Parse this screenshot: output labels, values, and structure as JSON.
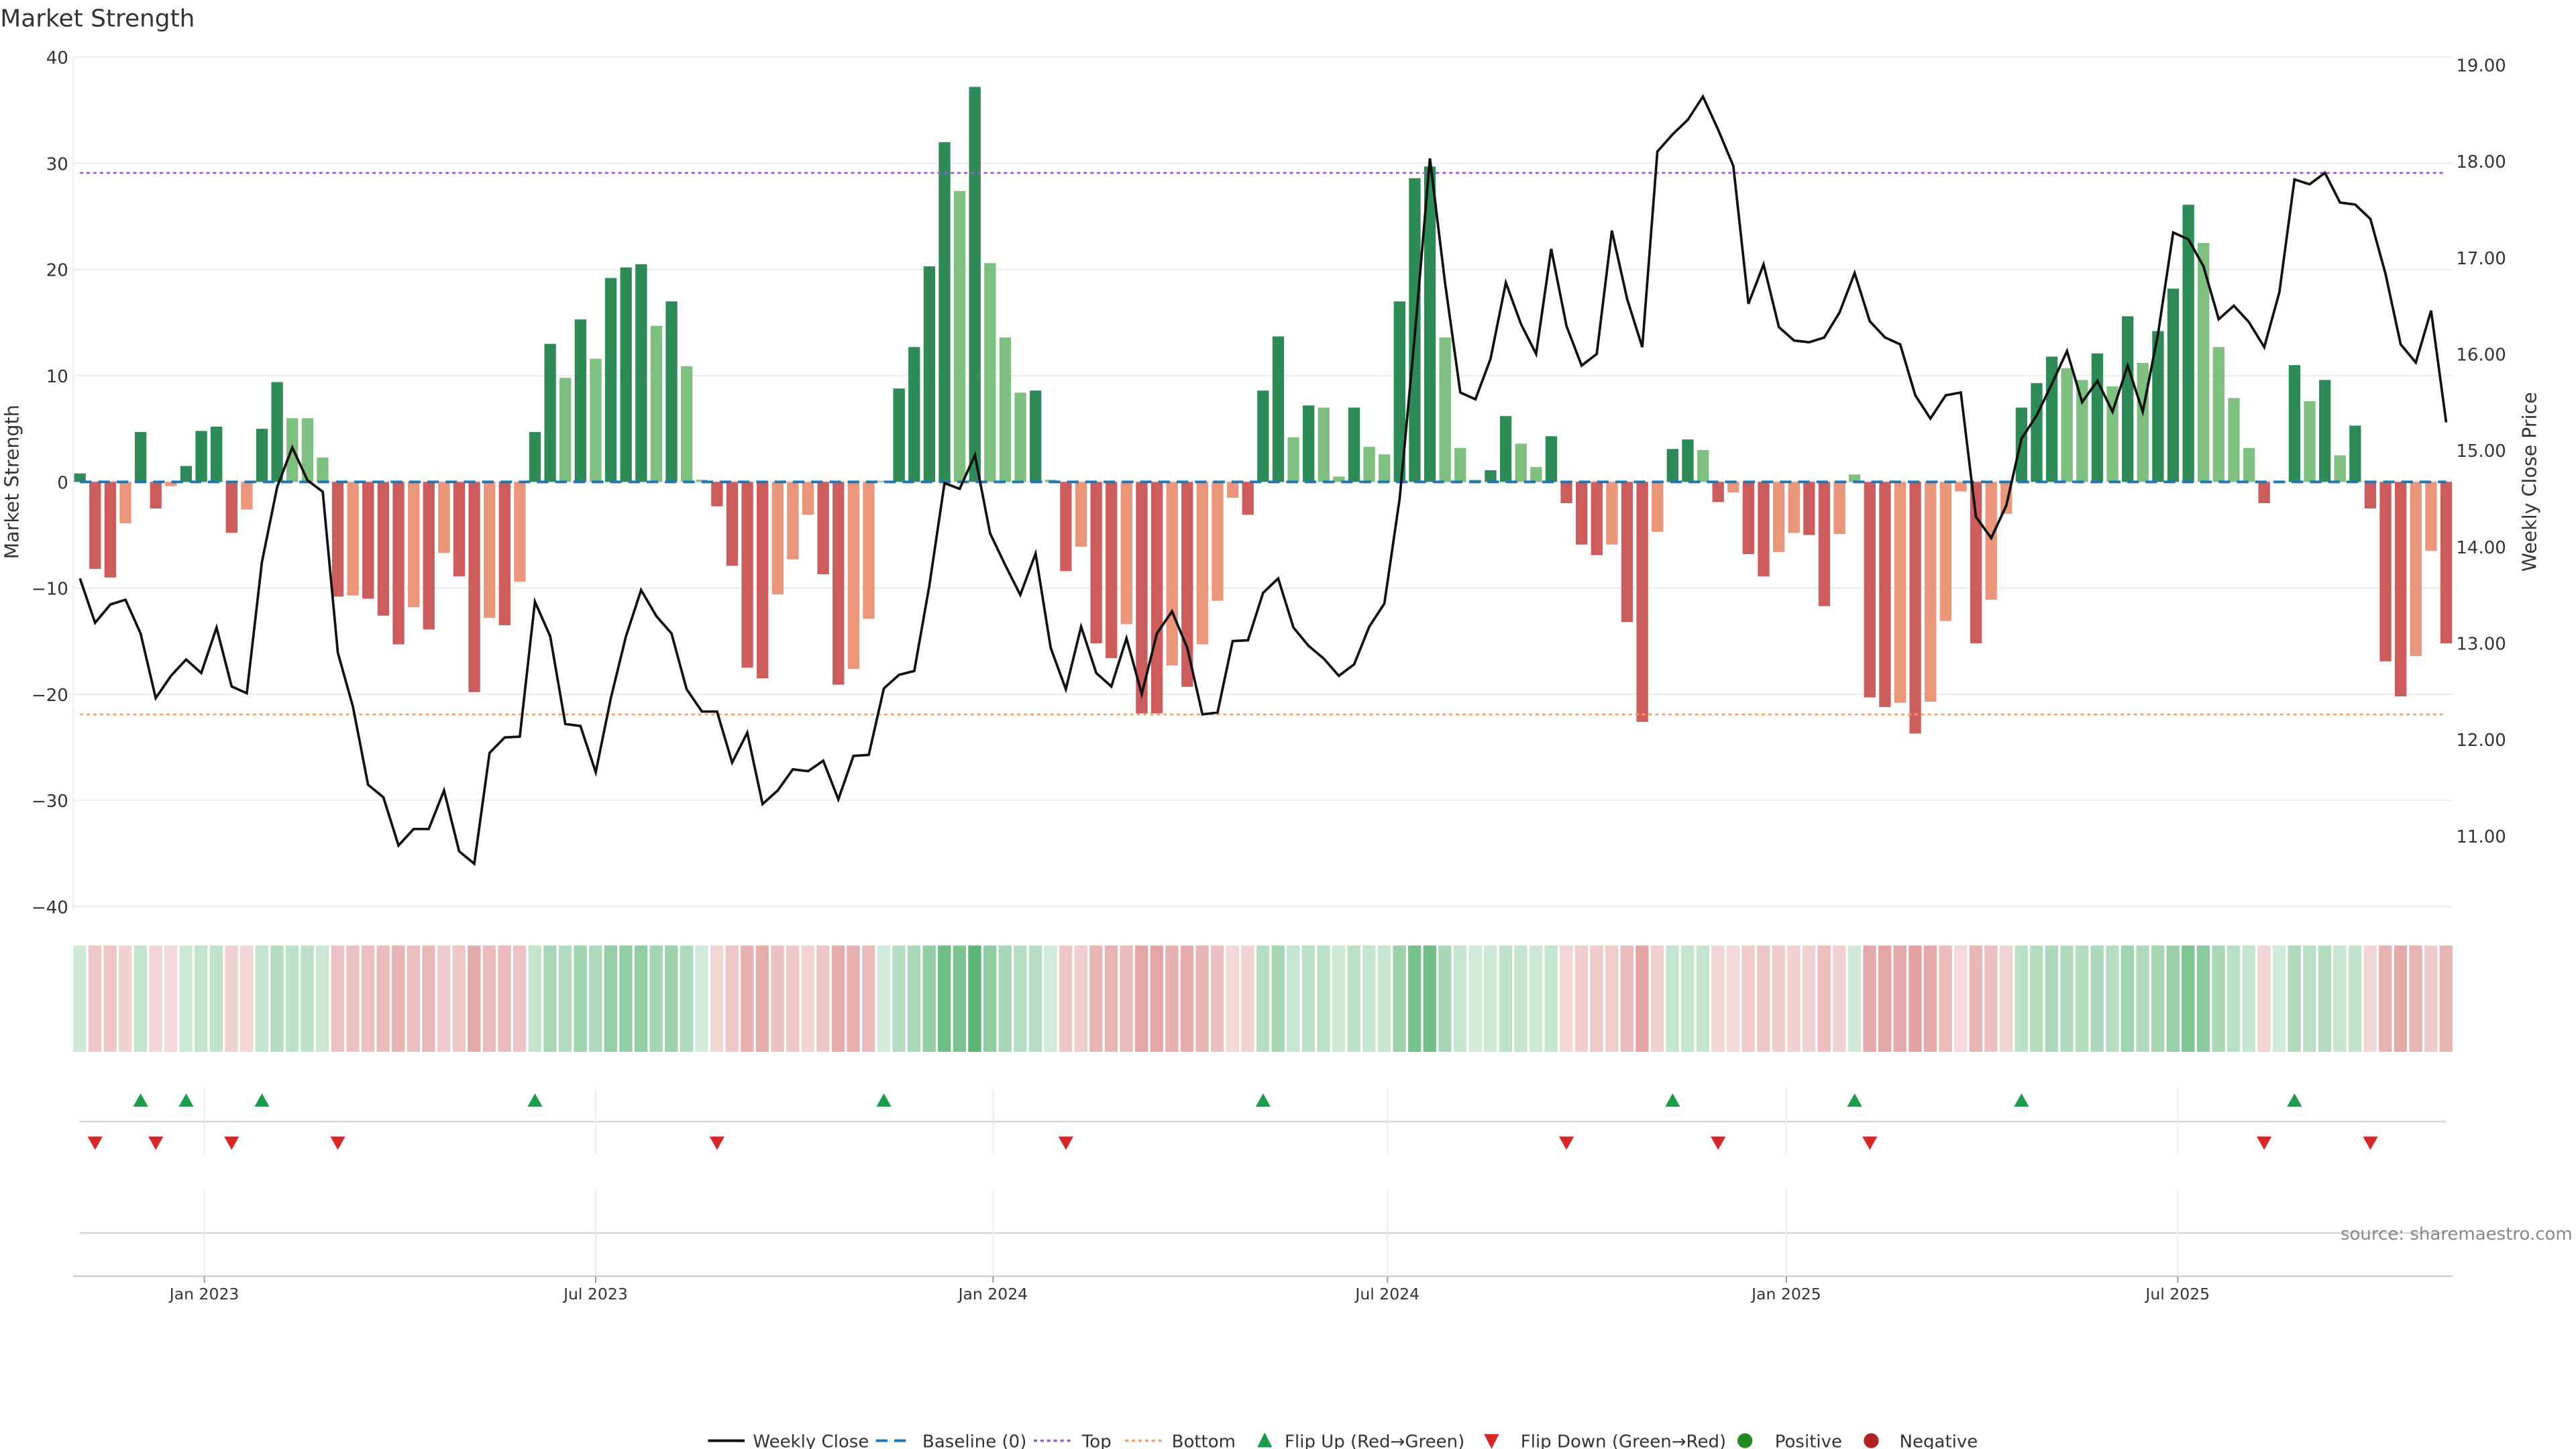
{
  "chart_data": {
    "type": "bar+line",
    "title": "Market Strength",
    "ylabel": "Market Strength",
    "y2label": "Weekly Close Price",
    "ylim": [
      -40,
      40
    ],
    "yticks": [
      40,
      30,
      20,
      10,
      0,
      -10,
      -20,
      -30,
      -40
    ],
    "ytick_labels": [
      "40",
      "30",
      "20",
      "10",
      "0",
      "−10",
      "−20",
      "−30",
      "−40"
    ],
    "y2lim": [
      10.15,
      19.1
    ],
    "y2ticks": [
      19,
      18,
      17,
      16,
      15,
      14,
      13,
      12,
      11
    ],
    "y2tick_labels": [
      "19.00",
      "18.00",
      "17.00",
      "16.00",
      "15.00",
      "14.00",
      "13.00",
      "12.00",
      "11.00"
    ],
    "top_line": 29.1,
    "bottom_line": -21.9,
    "baseline": 0,
    "x_ticks": [
      {
        "week_index": 8.2,
        "label": "Jan 2023"
      },
      {
        "week_index": 34.0,
        "label": "Jul 2023"
      },
      {
        "week_index": 60.2,
        "label": "Jan 2024"
      },
      {
        "week_index": 86.2,
        "label": "Jul 2024"
      },
      {
        "week_index": 112.5,
        "label": "Jan 2025"
      },
      {
        "week_index": 138.3,
        "label": "Jul 2025"
      }
    ],
    "strength": [
      0.8,
      -8.2,
      -9.0,
      -3.9,
      4.7,
      -2.5,
      -0.4,
      1.5,
      4.8,
      5.2,
      -4.8,
      -2.6,
      5.0,
      9.4,
      6.0,
      6.0,
      2.3,
      -10.8,
      -10.7,
      -11.0,
      -12.6,
      -15.3,
      -11.8,
      -13.9,
      -6.7,
      -8.9,
      -19.8,
      -12.8,
      -13.5,
      -9.4,
      4.7,
      13.0,
      9.8,
      15.3,
      11.6,
      19.2,
      20.2,
      20.5,
      14.7,
      17.0,
      10.9,
      0.2,
      -2.3,
      -7.9,
      -17.5,
      -18.5,
      -10.6,
      -7.3,
      -3.1,
      -8.7,
      -19.1,
      -17.6,
      -12.9,
      0.1,
      8.8,
      12.7,
      20.3,
      32.0,
      27.4,
      37.2,
      20.6,
      13.6,
      8.4,
      8.6,
      0.2,
      -8.4,
      -6.1,
      -15.2,
      -16.6,
      -13.4,
      -21.8,
      -21.8,
      -17.3,
      -19.3,
      -15.3,
      -11.2,
      -1.5,
      -3.1,
      8.6,
      13.7,
      4.2,
      7.2,
      7.0,
      0.5,
      7.0,
      3.3,
      2.6,
      17.0,
      28.6,
      29.7,
      13.6,
      3.2,
      0.2,
      1.1,
      6.2,
      3.6,
      1.4,
      4.3,
      -2.0,
      -5.9,
      -6.9,
      -5.9,
      -13.2,
      -22.6,
      -4.7,
      3.1,
      4.0,
      3.0,
      -1.9,
      -1.0,
      -6.8,
      -8.9,
      -6.6,
      -4.8,
      -5.0,
      -11.7,
      -4.9,
      0.7,
      -20.3,
      -21.2,
      -20.8,
      -23.7,
      -20.7,
      -13.1,
      -0.9,
      -15.2,
      -11.1,
      -3.0,
      7.0,
      9.3,
      11.8,
      10.7,
      9.6,
      12.1,
      9.0,
      15.6,
      11.2,
      14.2,
      18.2,
      26.1,
      22.5,
      12.7,
      7.9,
      3.2,
      -2.0,
      0.0,
      11.0,
      7.6,
      9.6,
      2.5,
      5.3,
      -2.5,
      -16.9,
      -20.2,
      -16.4,
      -6.5,
      -15.2
    ],
    "strength_shade": "DRRSDRSDDDRSDDLLLRSRRRSRSRRSRSDDLDLDDDLDLLRRRRSSSRRSSLDDDDLDLLLDLRSRRSRRSRSSSRDDLDLLDLLDDDLLLDDLLDRRRSRRSDDLRSRRSSRRSLRRSRSSSRSSDDDLLDLDLDDDLLLLRRDLDLDRRRSSR",
    "weekly_close": [
      13.67,
      13.21,
      13.4,
      13.45,
      13.1,
      12.43,
      12.66,
      12.83,
      12.69,
      13.16,
      12.55,
      12.48,
      13.84,
      14.62,
      15.03,
      14.69,
      14.57,
      12.9,
      12.34,
      11.53,
      11.4,
      10.9,
      11.07,
      11.07,
      11.47,
      10.84,
      10.71,
      11.86,
      12.02,
      12.03,
      13.43,
      13.07,
      12.16,
      12.14,
      11.66,
      12.43,
      13.07,
      13.55,
      13.28,
      13.1,
      12.52,
      12.29,
      12.29,
      11.76,
      12.07,
      11.33,
      11.47,
      11.69,
      11.67,
      11.78,
      11.38,
      11.83,
      11.84,
      12.53,
      12.67,
      12.71,
      13.6,
      14.66,
      14.6,
      14.95,
      14.14,
      13.81,
      13.5,
      13.93,
      12.95,
      12.52,
      13.17,
      12.69,
      12.55,
      13.05,
      12.47,
      13.1,
      13.33,
      12.95,
      12.26,
      12.28,
      13.02,
      13.03,
      13.52,
      13.67,
      13.16,
      12.97,
      12.84,
      12.66,
      12.78,
      13.17,
      13.41,
      14.5,
      16.19,
      18.03,
      16.74,
      15.6,
      15.53,
      15.95,
      16.74,
      16.31,
      16.0,
      17.09,
      16.29,
      15.88,
      16.0,
      17.28,
      16.57,
      16.07,
      18.1,
      18.28,
      18.43,
      18.67,
      18.33,
      17.95,
      16.52,
      16.93,
      16.28,
      16.14,
      16.12,
      16.17,
      16.43,
      16.84,
      16.34,
      16.17,
      16.1,
      15.57,
      15.33,
      15.57,
      15.6,
      14.31,
      14.09,
      14.43,
      15.12,
      15.36,
      15.69,
      16.03,
      15.5,
      15.72,
      15.4,
      15.88,
      15.4,
      16.21,
      17.26,
      17.19,
      16.91,
      16.36,
      16.5,
      16.33,
      16.07,
      16.64,
      17.81,
      17.76,
      17.88,
      17.57,
      17.55,
      17.4,
      16.83,
      16.1,
      15.91,
      16.45,
      15.29
    ],
    "flip_up_weeks": [
      4,
      7,
      12,
      30,
      53,
      78,
      105,
      117,
      128,
      146
    ],
    "flip_down_weeks": [
      1,
      5,
      10,
      17,
      42,
      65,
      98,
      108,
      118,
      144,
      151
    ],
    "legend": {
      "placement": "bottom-center",
      "items": [
        "Weekly Close",
        "Baseline (0)",
        "Top",
        "Bottom",
        "Flip Up (Red→Green)",
        "Flip Down (Green→Red)",
        "Positive",
        "Negative"
      ]
    },
    "source": "source: sharemaestro.com"
  },
  "colors": {
    "strong_pos": "#2e8b57",
    "weak_pos": "#7fbf7f",
    "strong_neg": "#cd5c5c",
    "weak_neg": "#e9967a",
    "line": "#111111",
    "baseline": "#1f77b4",
    "top": "#9b59d6",
    "bottom": "#f0a060",
    "flip_up": "#1a9c4a",
    "flip_down": "#d62728",
    "positive": "#228b22",
    "negative": "#b22222"
  }
}
